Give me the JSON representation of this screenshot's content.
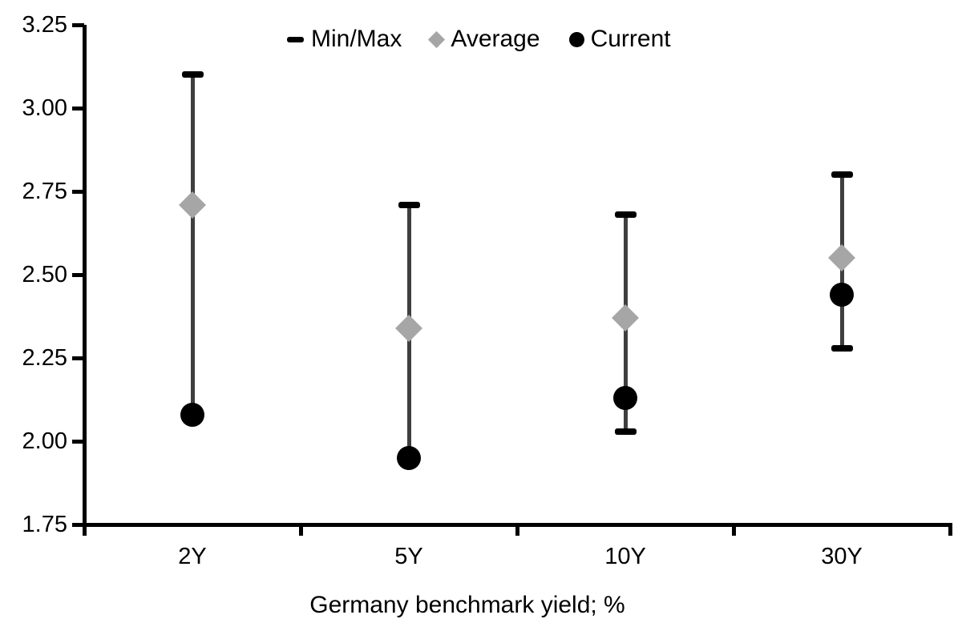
{
  "chart_data": {
    "type": "scatter",
    "subtype": "min-max-range-with-average-and-current-markers",
    "title": "",
    "xlabel": "Germany benchmark yield; %",
    "ylabel": "",
    "categories": [
      "2Y",
      "5Y",
      "10Y",
      "30Y"
    ],
    "series": [
      {
        "name": "Min/Max",
        "marker": "dash",
        "min": [
          2.08,
          1.95,
          2.03,
          2.28
        ],
        "max": [
          3.1,
          2.71,
          2.68,
          2.8
        ]
      },
      {
        "name": "Average",
        "marker": "diamond",
        "values": [
          2.71,
          2.34,
          2.37,
          2.55
        ]
      },
      {
        "name": "Current",
        "marker": "circle",
        "values": [
          2.08,
          1.95,
          2.13,
          2.44
        ]
      }
    ],
    "ylim": [
      1.75,
      3.25
    ],
    "ytick_step": 0.25,
    "yticks": [
      {
        "value": 3.25,
        "label": "3.25"
      },
      {
        "value": 3.0,
        "label": "3.00"
      },
      {
        "value": 2.75,
        "label": "2.75"
      },
      {
        "value": 2.5,
        "label": "2.50"
      },
      {
        "value": 2.25,
        "label": "2.25"
      },
      {
        "value": 2.0,
        "label": "2.00"
      },
      {
        "value": 1.75,
        "label": "1.75"
      }
    ],
    "grid": false,
    "legend": {
      "position": "top-center",
      "entries": [
        {
          "label": "Min/Max",
          "marker": "dash"
        },
        {
          "label": "Average",
          "marker": "diamond"
        },
        {
          "label": "Current",
          "marker": "circle"
        }
      ]
    },
    "colors": {
      "axis": "#000000",
      "text": "#000000",
      "whisker_stem": "#3f3f3f",
      "minmax_cap": "#000000",
      "average_marker": "#a6a6a6",
      "current_marker": "#000000",
      "background": "#ffffff"
    }
  }
}
